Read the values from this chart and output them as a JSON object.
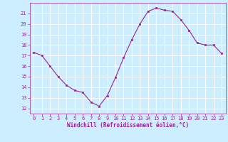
{
  "x": [
    0,
    1,
    2,
    3,
    4,
    5,
    6,
    7,
    8,
    9,
    10,
    11,
    12,
    13,
    14,
    15,
    16,
    17,
    18,
    19,
    20,
    21,
    22,
    23
  ],
  "y": [
    17.3,
    17.0,
    16.0,
    15.0,
    14.2,
    13.7,
    13.5,
    12.6,
    12.2,
    13.2,
    14.9,
    16.8,
    18.5,
    20.0,
    21.2,
    21.5,
    21.3,
    21.2,
    20.4,
    19.4,
    18.2,
    18.0,
    18.0,
    17.2
  ],
  "line_color": "#992299",
  "marker": "s",
  "marker_size": 2.0,
  "bg_color": "#cceeff",
  "grid_color": "#ffffff",
  "xlabel": "Windchill (Refroidissement éolien,°C)",
  "xlabel_color": "#992299",
  "tick_color": "#992299",
  "ylim": [
    11.5,
    22.0
  ],
  "xlim": [
    -0.5,
    23.5
  ],
  "yticks": [
    12,
    13,
    14,
    15,
    16,
    17,
    18,
    19,
    20,
    21
  ],
  "xticks": [
    0,
    1,
    2,
    3,
    4,
    5,
    6,
    7,
    8,
    9,
    10,
    11,
    12,
    13,
    14,
    15,
    16,
    17,
    18,
    19,
    20,
    21,
    22,
    23
  ]
}
